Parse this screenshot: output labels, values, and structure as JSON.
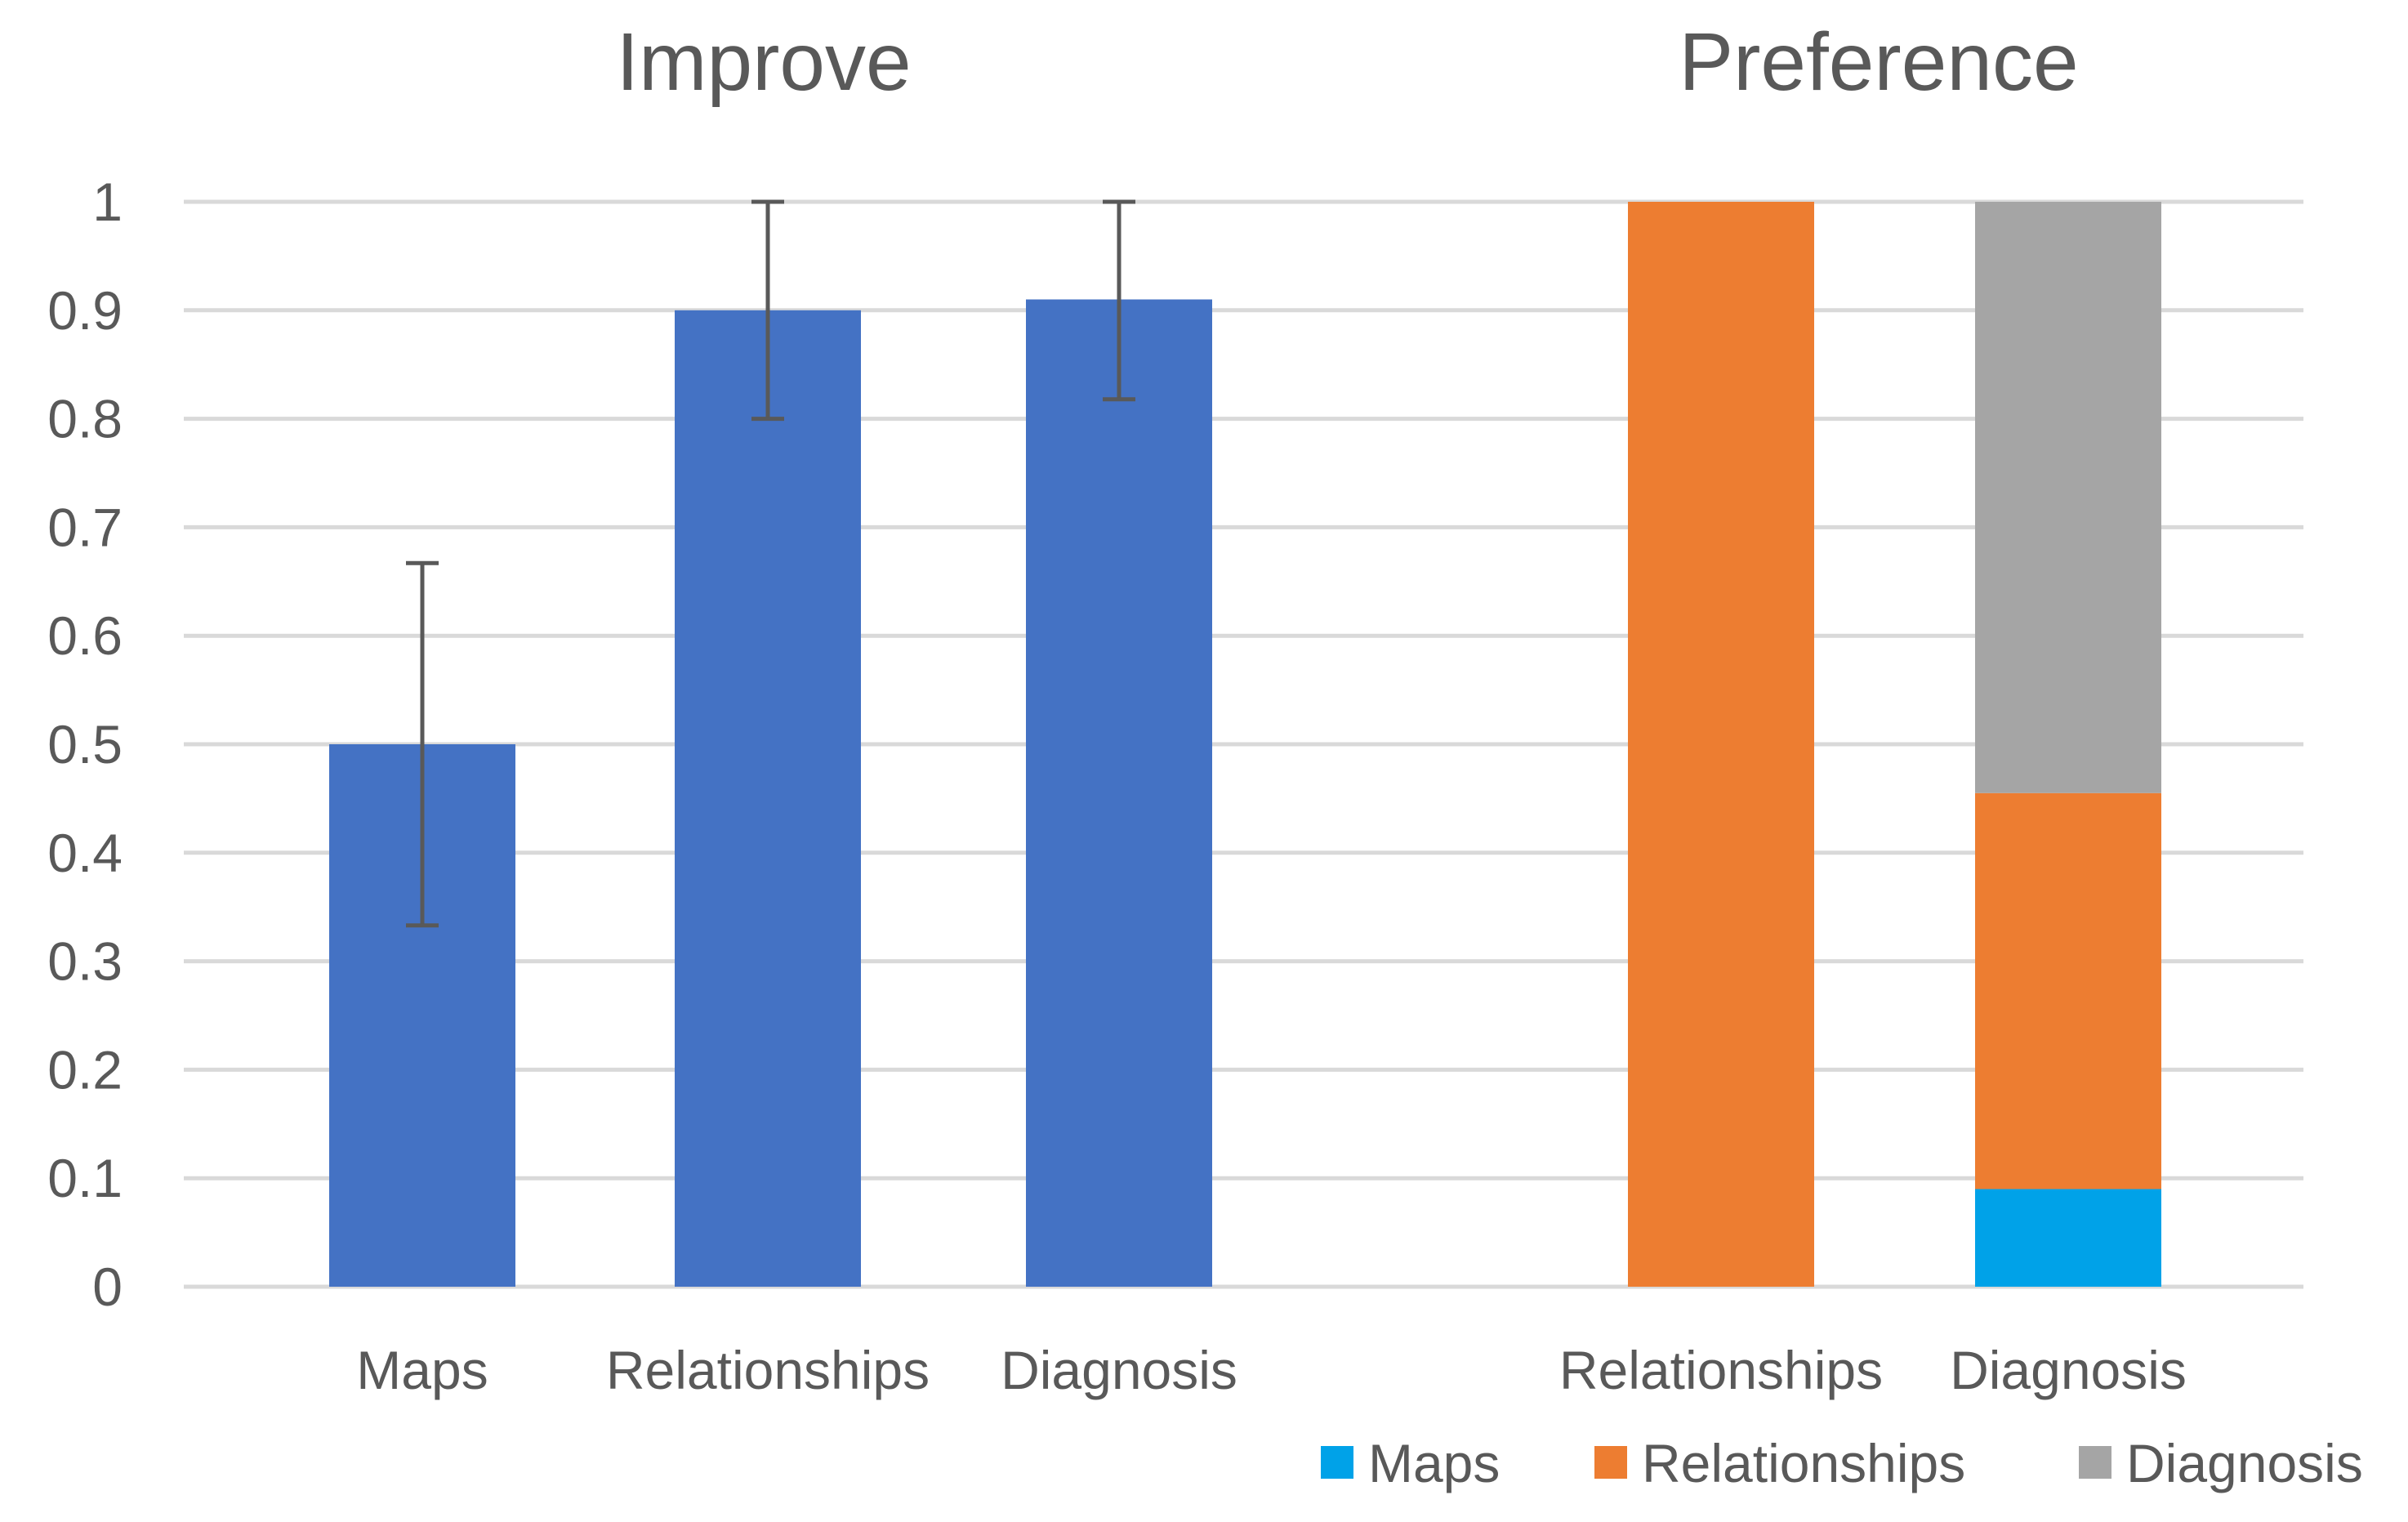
{
  "chart_data": [
    {
      "type": "bar",
      "title": "Improve",
      "categories": [
        "Maps",
        "Relationships",
        "Diagnosis"
      ],
      "values": [
        0.5,
        0.9,
        0.91
      ],
      "error_bars": [
        [
          0.333,
          0.667
        ],
        [
          0.8,
          1.0
        ],
        [
          0.818,
          1.0
        ]
      ],
      "color": "#4472c4",
      "ylim": [
        0,
        1
      ],
      "yticks": [
        "0",
        "0.1",
        "0.2",
        "0.3",
        "0.4",
        "0.5",
        "0.6",
        "0.7",
        "0.8",
        "0.9",
        "1"
      ],
      "grid": true
    },
    {
      "type": "bar",
      "stacked": true,
      "title": "Preference",
      "categories": [
        "Relationships",
        "Diagnosis"
      ],
      "series": [
        {
          "name": "Maps",
          "color": "#00a2e8",
          "values": [
            0,
            0.09
          ]
        },
        {
          "name": "Relationships",
          "color": "#ed7d31",
          "values": [
            1.0,
            0.365
          ]
        },
        {
          "name": "Diagnosis",
          "color": "#a5a5a5",
          "values": [
            0,
            0.545
          ]
        }
      ],
      "ylim": [
        0,
        1
      ],
      "legend": "bottom"
    }
  ]
}
